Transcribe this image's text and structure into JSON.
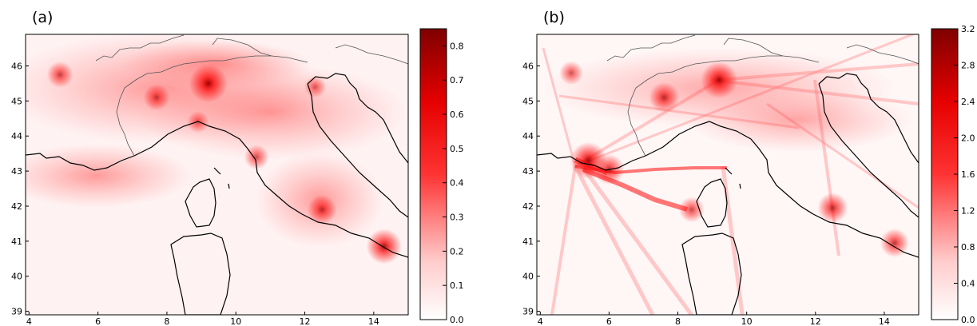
{
  "panels": [
    {
      "label": "(a)",
      "x_ticks": [
        "4",
        "6",
        "8",
        "10",
        "12",
        "14"
      ],
      "y_ticks": [
        "39",
        "40",
        "41",
        "42",
        "43",
        "44",
        "45",
        "46"
      ],
      "colorbar": {
        "ticks": [
          "0.0",
          "0.1",
          "0.2",
          "0.3",
          "0.4",
          "0.5",
          "0.6",
          "0.7",
          "0.8"
        ],
        "min": 0.0,
        "max": 0.85
      },
      "hotspots": [
        {
          "lon": 9.2,
          "lat": 45.5,
          "value": 0.85
        },
        {
          "lon": 7.7,
          "lat": 45.1,
          "value": 0.45
        },
        {
          "lon": 4.9,
          "lat": 45.75,
          "value": 0.45
        },
        {
          "lon": 12.5,
          "lat": 41.9,
          "value": 0.55
        },
        {
          "lon": 14.3,
          "lat": 40.85,
          "value": 0.75
        },
        {
          "lon": 10.6,
          "lat": 43.4,
          "value": 0.4
        },
        {
          "lon": 12.3,
          "lat": 45.4,
          "value": 0.3
        },
        {
          "lon": 8.9,
          "lat": 44.4,
          "value": 0.3
        }
      ]
    },
    {
      "label": "(b)",
      "x_ticks": [
        "4",
        "6",
        "8",
        "10",
        "12",
        "14"
      ],
      "y_ticks": [
        "39",
        "40",
        "41",
        "42",
        "43",
        "44",
        "45",
        "46"
      ],
      "colorbar": {
        "ticks": [
          "0.0",
          "0.4",
          "0.8",
          "1.2",
          "1.6",
          "2.0",
          "2.4",
          "2.8",
          "3.2"
        ],
        "min": 0.0,
        "max": 3.2
      },
      "hotspots": [
        {
          "lon": 9.2,
          "lat": 45.6,
          "value": 3.0
        },
        {
          "lon": 7.6,
          "lat": 45.1,
          "value": 2.2
        },
        {
          "lon": 5.4,
          "lat": 43.3,
          "value": 3.0
        },
        {
          "lon": 6.0,
          "lat": 43.05,
          "value": 2.2
        },
        {
          "lon": 4.9,
          "lat": 45.8,
          "value": 1.4
        },
        {
          "lon": 12.5,
          "lat": 41.95,
          "value": 2.2
        },
        {
          "lon": 14.3,
          "lat": 40.95,
          "value": 2.0
        },
        {
          "lon": 8.4,
          "lat": 41.9,
          "value": 1.6
        }
      ]
    }
  ],
  "map": {
    "lon_range": [
      3.9,
      15.0
    ],
    "lat_range": [
      38.9,
      46.9
    ],
    "colors": {
      "low": "#ffffff",
      "mid": "#ff0000",
      "high": "#7f0000",
      "coast": "#000000",
      "border": "#555555"
    }
  },
  "chart_data": [
    {
      "type": "heatmap",
      "title": "(a)",
      "xlim": [
        3.9,
        15.0
      ],
      "ylim": [
        38.9,
        46.9
      ],
      "color_range": [
        0.0,
        0.85
      ],
      "xticks": [
        4,
        6,
        8,
        10,
        12,
        14
      ],
      "yticks": [
        39,
        40,
        41,
        42,
        43,
        44,
        45,
        46
      ]
    },
    {
      "type": "heatmap",
      "title": "(b)",
      "xlim": [
        3.9,
        15.0
      ],
      "ylim": [
        38.9,
        46.9
      ],
      "color_range": [
        0.0,
        3.2
      ],
      "xticks": [
        4,
        6,
        8,
        10,
        12,
        14
      ],
      "yticks": [
        39,
        40,
        41,
        42,
        43,
        44,
        45,
        46
      ]
    }
  ]
}
